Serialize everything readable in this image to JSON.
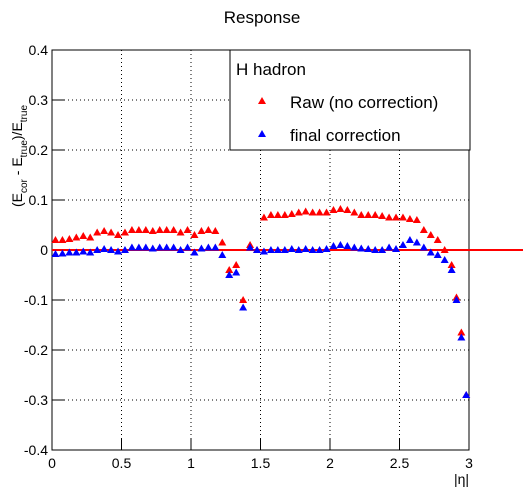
{
  "chart_data": {
    "type": "scatter",
    "title": "Response",
    "xlabel": "|η|",
    "ylabel_parts": [
      "(E",
      "cor",
      " - E",
      "true",
      ")/E",
      "true"
    ],
    "legend_title": "H hadron",
    "x": [
      0.025,
      0.075,
      0.125,
      0.175,
      0.225,
      0.275,
      0.325,
      0.375,
      0.425,
      0.475,
      0.525,
      0.575,
      0.625,
      0.675,
      0.725,
      0.775,
      0.825,
      0.875,
      0.925,
      0.975,
      1.025,
      1.075,
      1.125,
      1.175,
      1.225,
      1.275,
      1.325,
      1.375,
      1.425,
      1.475,
      1.525,
      1.575,
      1.625,
      1.675,
      1.725,
      1.775,
      1.825,
      1.875,
      1.925,
      1.975,
      2.025,
      2.075,
      2.125,
      2.175,
      2.225,
      2.275,
      2.325,
      2.375,
      2.425,
      2.475,
      2.525,
      2.575,
      2.625,
      2.675,
      2.725,
      2.775,
      2.825,
      2.875,
      2.91,
      2.945,
      2.98
    ],
    "series": [
      {
        "name": "Raw (no correction)",
        "color": "#ff0000",
        "values": [
          0.02,
          0.02,
          0.022,
          0.025,
          0.028,
          0.025,
          0.035,
          0.038,
          0.035,
          0.03,
          0.035,
          0.04,
          0.04,
          0.04,
          0.038,
          0.04,
          0.04,
          0.04,
          0.035,
          0.04,
          0.03,
          0.038,
          0.04,
          0.038,
          0.015,
          -0.04,
          -0.03,
          -0.1,
          0.01,
          0.0,
          0.065,
          0.07,
          0.07,
          0.07,
          0.072,
          0.075,
          0.077,
          0.075,
          0.075,
          0.075,
          0.08,
          0.082,
          0.08,
          0.075,
          0.07,
          0.07,
          0.07,
          0.068,
          0.065,
          0.065,
          0.065,
          0.062,
          0.06,
          0.04,
          0.03,
          0.02,
          0.0,
          -0.03,
          -0.095,
          -0.165,
          -0.29
        ]
      },
      {
        "name": "final correction",
        "color": "#0000ff",
        "values": [
          -0.008,
          -0.007,
          -0.005,
          -0.005,
          -0.003,
          -0.005,
          0.0,
          0.002,
          0.0,
          -0.003,
          0.0,
          0.005,
          0.005,
          0.005,
          0.003,
          0.005,
          0.005,
          0.005,
          0.0,
          0.005,
          -0.005,
          0.003,
          0.005,
          0.005,
          -0.01,
          -0.05,
          -0.045,
          -0.115,
          0.005,
          0.0,
          -0.003,
          0.0,
          0.0,
          0.0,
          0.002,
          0.0,
          0.002,
          0.0,
          0.0,
          0.002,
          0.008,
          0.01,
          0.008,
          0.005,
          0.003,
          0.002,
          0.0,
          0.0,
          0.005,
          0.002,
          0.01,
          0.02,
          0.015,
          0.005,
          -0.005,
          -0.01,
          -0.02,
          -0.04,
          -0.1,
          -0.175,
          -0.29
        ]
      }
    ],
    "reference_line": {
      "value": 0,
      "color": "#ff0000"
    },
    "xlim": [
      0,
      3
    ],
    "ylim": [
      -0.4,
      0.4
    ],
    "xticks": [
      0,
      0.5,
      1,
      1.5,
      2,
      2.5,
      3
    ],
    "yticks": [
      -0.4,
      -0.3,
      -0.2,
      -0.1,
      0,
      0.1,
      0.2,
      0.3,
      0.4
    ],
    "grid": true
  }
}
